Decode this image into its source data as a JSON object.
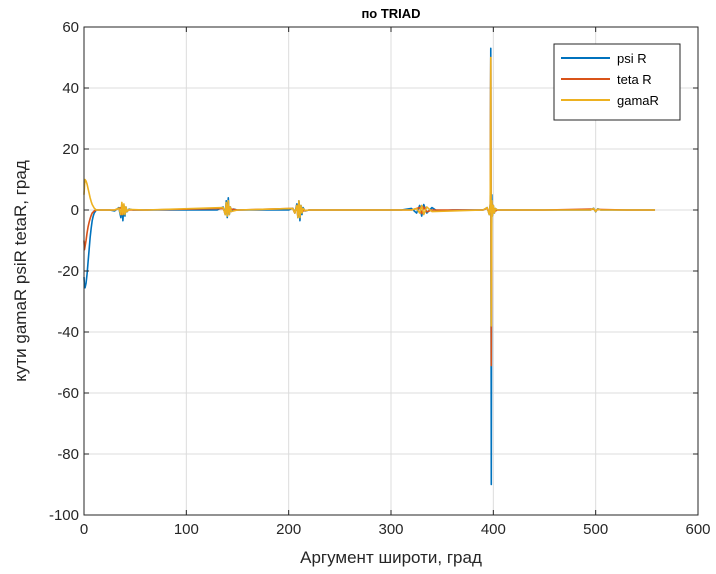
{
  "chart_data": {
    "type": "line",
    "title": "по TRIAD",
    "xlabel": "Аргумент широти, град",
    "ylabel": "кути gamaR psiR tetaR, град",
    "xlim": [
      0,
      600
    ],
    "ylim": [
      -100,
      60
    ],
    "xticks": [
      0,
      100,
      200,
      300,
      400,
      500,
      600
    ],
    "yticks": [
      -100,
      -80,
      -60,
      -40,
      -20,
      0,
      20,
      40,
      60
    ],
    "grid": true,
    "legend": "top-right",
    "series": [
      {
        "name": "psi R",
        "color": "#0072BD",
        "x": [
          0,
          0.5,
          1,
          2,
          3,
          4,
          5,
          6,
          7,
          8,
          9,
          10,
          11,
          12,
          14,
          16,
          20,
          25,
          30,
          34,
          36,
          37,
          38,
          39,
          40,
          41,
          42,
          44,
          48,
          60,
          100,
          130,
          136,
          138,
          139,
          140,
          141,
          142,
          143,
          144,
          146,
          150,
          180,
          200,
          204,
          206,
          208,
          209,
          210,
          211,
          212,
          213,
          214,
          216,
          220,
          250,
          300,
          310,
          320,
          325,
          328,
          330,
          332,
          335,
          340,
          345,
          360,
          390,
          394,
          396,
          397,
          397.5,
          398,
          398.5,
          399,
          400,
          401,
          402,
          404,
          410,
          450,
          495,
          498,
          500,
          502,
          505,
          530,
          558
        ],
        "y": [
          -22,
          -25,
          -25.5,
          -24,
          -21,
          -17,
          -13,
          -9,
          -6,
          -3.5,
          -2,
          -1,
          -0.5,
          0,
          0,
          0,
          0,
          0,
          -0.3,
          0.8,
          -2.5,
          2,
          -3.5,
          1.5,
          -2,
          1,
          -0.6,
          0.3,
          0,
          0,
          0,
          0,
          1,
          -1.5,
          3,
          -2.5,
          4,
          -1.5,
          1,
          -0.5,
          0.3,
          0,
          0,
          0,
          0.6,
          -1,
          2,
          -2.5,
          3,
          -3.5,
          1.5,
          -1.5,
          0.8,
          -0.3,
          0,
          0,
          0,
          0,
          0.5,
          -1,
          1.5,
          -2,
          1.8,
          -1,
          0.8,
          -0.3,
          0,
          0,
          0.8,
          -1.5,
          2,
          53,
          -90,
          5,
          -2,
          1.5,
          -1,
          0.5,
          0,
          0,
          0,
          0,
          0.6,
          -0.6,
          0.4,
          0,
          0,
          0
        ]
      },
      {
        "name": "teta R",
        "color": "#D95319",
        "x": [
          0,
          0.5,
          1,
          2,
          3,
          4,
          5,
          6,
          7,
          8,
          10,
          12,
          14,
          16,
          20,
          30,
          36,
          37,
          38,
          39,
          40,
          41,
          44,
          60,
          136,
          138,
          139,
          140,
          141,
          142,
          144,
          150,
          204,
          206,
          208,
          209,
          210,
          211,
          212,
          214,
          220,
          320,
          328,
          330,
          332,
          335,
          340,
          390,
          394,
          396,
          397,
          397.5,
          398,
          398.5,
          399,
          400,
          401,
          404,
          410,
          450,
          498,
          500,
          502,
          530,
          558
        ],
        "y": [
          -10,
          -13,
          -12,
          -10,
          -7.5,
          -5.5,
          -4,
          -2.8,
          -1.8,
          -1,
          -0.3,
          0,
          0,
          0,
          0,
          0,
          0.8,
          -1.5,
          1.5,
          -1,
          0.8,
          -0.5,
          0,
          0,
          0.5,
          -1,
          1.5,
          -1.2,
          1.5,
          -0.8,
          0.3,
          0,
          0.5,
          -1,
          1.5,
          -2,
          2.5,
          -2,
          1,
          -0.3,
          0,
          0,
          0.8,
          -1.2,
          1,
          -0.6,
          0,
          0,
          0.6,
          -1,
          1.5,
          50,
          -51,
          3,
          -1.5,
          1,
          -0.5,
          0,
          0,
          0,
          0.3,
          -0.3,
          0.2,
          0,
          0
        ]
      },
      {
        "name": "gamaR",
        "color": "#EDB120",
        "x": [
          0,
          0.5,
          1,
          2,
          3,
          4,
          5,
          6,
          7,
          8,
          10,
          12,
          14,
          16,
          20,
          30,
          34,
          36,
          37,
          38,
          39,
          40,
          41,
          42,
          44,
          60,
          136,
          138,
          139,
          140,
          141,
          142,
          143,
          144,
          150,
          204,
          206,
          208,
          209,
          210,
          211,
          212,
          213,
          214,
          216,
          220,
          320,
          325,
          328,
          330,
          332,
          335,
          340,
          390,
          394,
          396,
          397,
          397.5,
          398,
          398.5,
          399,
          400,
          401,
          402,
          404,
          410,
          450,
          495,
          498,
          500,
          502,
          505,
          530,
          558
        ],
        "y": [
          5,
          8,
          10,
          9.5,
          8.5,
          7,
          5.5,
          4,
          2.8,
          1.8,
          0.6,
          0,
          0,
          0,
          0,
          0,
          0.6,
          -1.5,
          2.5,
          -1.5,
          2,
          -1.5,
          1,
          -0.5,
          0.2,
          0,
          0.8,
          -1.5,
          2.5,
          -2,
          3,
          -1.5,
          1,
          -0.5,
          0,
          0.5,
          -1,
          1.5,
          -2.5,
          3,
          -2.5,
          1.5,
          -1,
          0.5,
          -0.2,
          0,
          0,
          0.5,
          -1,
          1.5,
          -1.5,
          1,
          -0.5,
          0,
          0.8,
          -1.5,
          2,
          50,
          -38,
          3,
          -2,
          1.5,
          -1,
          0.5,
          0,
          0,
          0,
          0,
          0.5,
          -0.5,
          0.3,
          0,
          0,
          0
        ]
      }
    ]
  }
}
